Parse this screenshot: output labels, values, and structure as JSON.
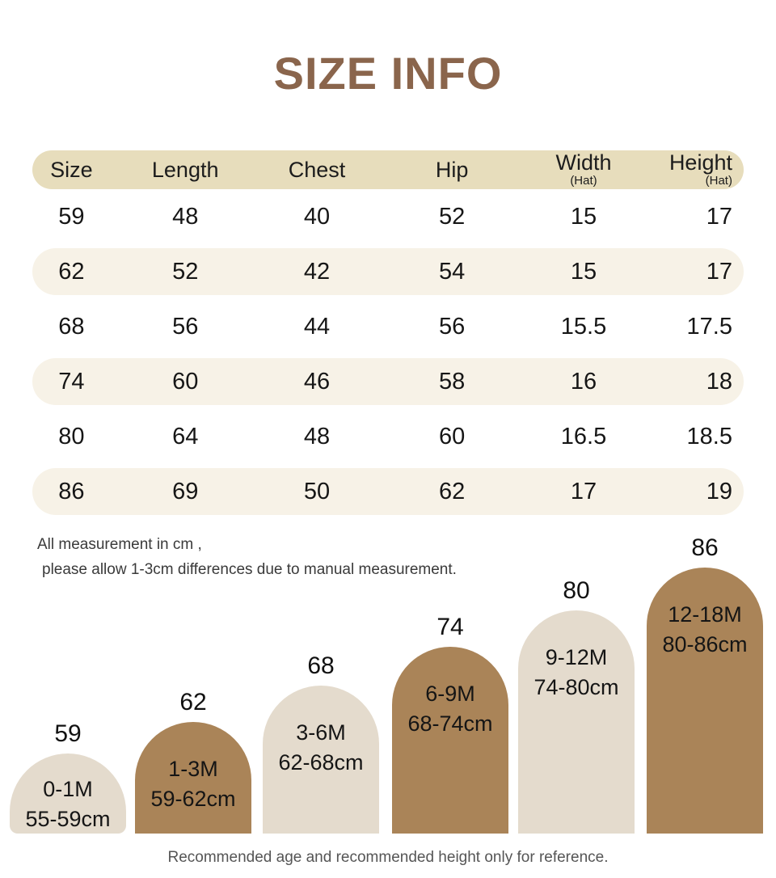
{
  "title": "SIZE INFO",
  "table": {
    "headers": [
      {
        "label": "Size",
        "sub": ""
      },
      {
        "label": "Length",
        "sub": ""
      },
      {
        "label": "Chest",
        "sub": ""
      },
      {
        "label": "Hip",
        "sub": ""
      },
      {
        "label": "Width",
        "sub": "(Hat)"
      },
      {
        "label": "Height",
        "sub": "(Hat)"
      }
    ],
    "rows": [
      [
        "59",
        "48",
        "40",
        "52",
        "15",
        "17"
      ],
      [
        "62",
        "52",
        "42",
        "54",
        "15",
        "17"
      ],
      [
        "68",
        "56",
        "44",
        "56",
        "15.5",
        "17.5"
      ],
      [
        "74",
        "60",
        "46",
        "58",
        "16",
        "18"
      ],
      [
        "80",
        "64",
        "48",
        "60",
        "16.5",
        "18.5"
      ],
      [
        "86",
        "69",
        "50",
        "62",
        "17",
        "19"
      ]
    ]
  },
  "notes": {
    "line1": "All measurement in cm ,",
    "line2": "please allow 1-3cm differences due to manual measurement."
  },
  "bars": [
    {
      "size": "59",
      "age": "0-1M",
      "range": "55-59cm"
    },
    {
      "size": "62",
      "age": "1-3M",
      "range": "59-62cm"
    },
    {
      "size": "68",
      "age": "3-6M",
      "range": "62-68cm"
    },
    {
      "size": "74",
      "age": "6-9M",
      "range": "68-74cm"
    },
    {
      "size": "80",
      "age": "9-12M",
      "range": "74-80cm"
    },
    {
      "size": "86",
      "age": "12-18M",
      "range": "80-86cm"
    }
  ],
  "footer": "Recommended age and recommended height only for reference.",
  "colors": {
    "title_brown": "#8a654c",
    "header_pill": "#e7ddbc",
    "row_stripe": "#f7f2e7",
    "bar_light": "#e4dbcd",
    "bar_brown": "#aa8458"
  },
  "chart_data": [
    {
      "type": "table",
      "title": "SIZE INFO",
      "columns": [
        "Size",
        "Length",
        "Chest",
        "Hip",
        "Width (Hat)",
        "Height (Hat)"
      ],
      "rows": [
        [
          59,
          48,
          40,
          52,
          15,
          17
        ],
        [
          62,
          52,
          42,
          54,
          15,
          17
        ],
        [
          68,
          56,
          44,
          56,
          15.5,
          17.5
        ],
        [
          74,
          60,
          46,
          58,
          16,
          18
        ],
        [
          80,
          64,
          48,
          60,
          16.5,
          18.5
        ],
        [
          86,
          69,
          50,
          62,
          17,
          19
        ]
      ],
      "units": "cm",
      "notes": "All measurement in cm , please allow 1-3cm differences due to manual measurement."
    },
    {
      "type": "bar",
      "categories": [
        "59",
        "62",
        "68",
        "74",
        "80",
        "86"
      ],
      "values": [
        59,
        62,
        68,
        74,
        80,
        86
      ],
      "bar_labels": [
        "0-1M / 55-59cm",
        "1-3M / 59-62cm",
        "3-6M / 62-68cm",
        "6-9M / 68-74cm",
        "9-12M / 74-80cm",
        "12-18M / 80-86cm"
      ],
      "title": "Recommended age and recommended height only for reference.",
      "xlabel": "",
      "ylabel": "",
      "legend": "none",
      "grid": false
    }
  ]
}
